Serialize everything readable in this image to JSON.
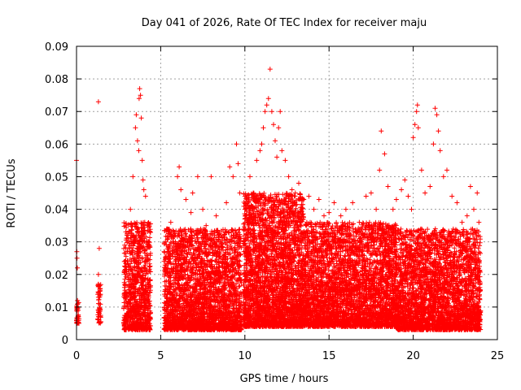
{
  "chart_data": {
    "type": "scatter",
    "title": "Day 041 of 2026, Rate Of TEC Index for receiver maju",
    "xlabel": "GPS time / hours",
    "ylabel": "ROTI / TECUs",
    "xlim": [
      0,
      25
    ],
    "ylim": [
      0,
      0.09
    ],
    "xticks": [
      0,
      5,
      10,
      15,
      20,
      25
    ],
    "xtick_labels": [
      "0",
      "5",
      "10",
      "15",
      "20",
      "25"
    ],
    "yticks": [
      0,
      0.01,
      0.02,
      0.03,
      0.04,
      0.05,
      0.06,
      0.07,
      0.08,
      0.09
    ],
    "ytick_labels": [
      "0",
      "0.01",
      "0.02",
      "0.03",
      "0.04",
      "0.05",
      "0.06",
      "0.07",
      "0.08",
      "0.09"
    ],
    "grid": true,
    "marker": "+",
    "marker_color": "#ff0000",
    "series": [
      {
        "name": "ROTI",
        "points": [
          [
            0.0,
            0.055
          ],
          [
            0.02,
            0.027
          ],
          [
            0.03,
            0.025
          ],
          [
            0.05,
            0.022
          ],
          [
            0.06,
            0.012
          ],
          [
            0.08,
            0.011
          ],
          [
            0.1,
            0.009
          ],
          [
            0.12,
            0.007
          ],
          [
            0.14,
            0.005
          ],
          [
            1.3,
            0.073
          ],
          [
            1.35,
            0.028
          ],
          [
            1.3,
            0.02
          ],
          [
            1.3,
            0.017
          ],
          [
            1.4,
            0.015
          ],
          [
            1.3,
            0.013
          ],
          [
            1.35,
            0.011
          ],
          [
            1.4,
            0.009
          ],
          [
            1.3,
            0.007
          ],
          [
            3.2,
            0.04
          ],
          [
            3.35,
            0.05
          ],
          [
            3.5,
            0.065
          ],
          [
            3.55,
            0.069
          ],
          [
            3.62,
            0.061
          ],
          [
            3.7,
            0.058
          ],
          [
            3.72,
            0.074
          ],
          [
            3.75,
            0.077
          ],
          [
            3.8,
            0.075
          ],
          [
            3.85,
            0.068
          ],
          [
            3.9,
            0.055
          ],
          [
            3.95,
            0.049
          ],
          [
            4.0,
            0.046
          ],
          [
            4.05,
            0.036
          ],
          [
            4.1,
            0.044
          ],
          [
            4.2,
            0.035
          ],
          [
            4.3,
            0.03
          ],
          [
            5.3,
            0.03
          ],
          [
            5.6,
            0.036
          ],
          [
            5.8,
            0.032
          ],
          [
            6.0,
            0.05
          ],
          [
            6.1,
            0.053
          ],
          [
            6.2,
            0.046
          ],
          [
            6.5,
            0.043
          ],
          [
            6.8,
            0.039
          ],
          [
            6.9,
            0.045
          ],
          [
            7.2,
            0.05
          ],
          [
            7.5,
            0.04
          ],
          [
            7.7,
            0.035
          ],
          [
            8.0,
            0.05
          ],
          [
            8.3,
            0.038
          ],
          [
            8.6,
            0.032
          ],
          [
            8.9,
            0.042
          ],
          [
            9.1,
            0.053
          ],
          [
            9.3,
            0.05
          ],
          [
            9.5,
            0.06
          ],
          [
            9.6,
            0.054
          ],
          [
            9.7,
            0.045
          ],
          [
            10.0,
            0.04
          ],
          [
            10.3,
            0.05
          ],
          [
            10.5,
            0.045
          ],
          [
            10.7,
            0.055
          ],
          [
            10.9,
            0.058
          ],
          [
            11.0,
            0.06
          ],
          [
            11.1,
            0.065
          ],
          [
            11.2,
            0.07
          ],
          [
            11.3,
            0.072
          ],
          [
            11.4,
            0.074
          ],
          [
            11.5,
            0.083
          ],
          [
            11.6,
            0.07
          ],
          [
            11.7,
            0.066
          ],
          [
            11.8,
            0.061
          ],
          [
            11.9,
            0.056
          ],
          [
            12.0,
            0.065
          ],
          [
            12.1,
            0.07
          ],
          [
            12.2,
            0.058
          ],
          [
            12.4,
            0.055
          ],
          [
            12.6,
            0.05
          ],
          [
            12.8,
            0.046
          ],
          [
            13.0,
            0.045
          ],
          [
            13.2,
            0.048
          ],
          [
            13.5,
            0.043
          ],
          [
            13.8,
            0.044
          ],
          [
            14.1,
            0.04
          ],
          [
            14.4,
            0.043
          ],
          [
            14.7,
            0.038
          ],
          [
            15.0,
            0.039
          ],
          [
            15.3,
            0.042
          ],
          [
            15.7,
            0.038
          ],
          [
            16.0,
            0.04
          ],
          [
            16.4,
            0.042
          ],
          [
            16.8,
            0.036
          ],
          [
            17.2,
            0.044
          ],
          [
            17.5,
            0.045
          ],
          [
            17.8,
            0.04
          ],
          [
            18.0,
            0.052
          ],
          [
            18.1,
            0.064
          ],
          [
            18.3,
            0.057
          ],
          [
            18.5,
            0.047
          ],
          [
            18.8,
            0.04
          ],
          [
            19.0,
            0.043
          ],
          [
            19.3,
            0.046
          ],
          [
            19.5,
            0.049
          ],
          [
            19.7,
            0.044
          ],
          [
            19.9,
            0.04
          ],
          [
            20.0,
            0.062
          ],
          [
            20.1,
            0.066
          ],
          [
            20.2,
            0.07
          ],
          [
            20.25,
            0.072
          ],
          [
            20.3,
            0.065
          ],
          [
            20.5,
            0.052
          ],
          [
            20.7,
            0.045
          ],
          [
            21.0,
            0.047
          ],
          [
            21.2,
            0.06
          ],
          [
            21.3,
            0.071
          ],
          [
            21.4,
            0.069
          ],
          [
            21.5,
            0.064
          ],
          [
            21.6,
            0.058
          ],
          [
            21.8,
            0.05
          ],
          [
            22.0,
            0.052
          ],
          [
            22.3,
            0.044
          ],
          [
            22.6,
            0.042
          ],
          [
            22.9,
            0.036
          ],
          [
            23.2,
            0.038
          ],
          [
            23.4,
            0.047
          ],
          [
            23.6,
            0.04
          ],
          [
            23.8,
            0.045
          ],
          [
            23.9,
            0.036
          ]
        ]
      }
    ],
    "density_clusters": [
      {
        "x_range": [
          2.8,
          4.4
        ],
        "y_range": [
          0.003,
          0.036
        ],
        "count": 900,
        "seed": 11
      },
      {
        "x_range": [
          5.2,
          9.8
        ],
        "y_range": [
          0.003,
          0.034
        ],
        "count": 2600,
        "seed": 23
      },
      {
        "x_range": [
          9.9,
          13.5
        ],
        "y_range": [
          0.004,
          0.045
        ],
        "count": 2800,
        "seed": 37
      },
      {
        "x_range": [
          13.5,
          19.0
        ],
        "y_range": [
          0.004,
          0.036
        ],
        "count": 3300,
        "seed": 41
      },
      {
        "x_range": [
          19.0,
          24.0
        ],
        "y_range": [
          0.003,
          0.034
        ],
        "count": 2900,
        "seed": 53
      },
      {
        "x_range": [
          1.25,
          1.45
        ],
        "y_range": [
          0.005,
          0.018
        ],
        "count": 45,
        "seed": 61
      },
      {
        "x_range": [
          0.0,
          0.15
        ],
        "y_range": [
          0.005,
          0.013
        ],
        "count": 30,
        "seed": 67
      }
    ]
  }
}
